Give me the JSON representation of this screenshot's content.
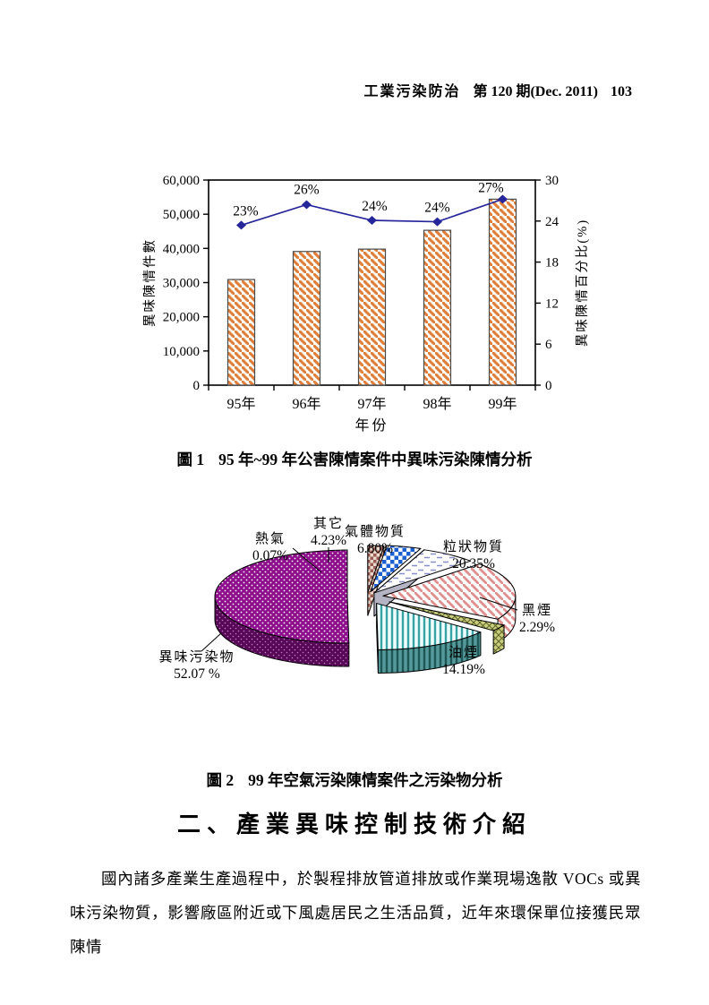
{
  "header": {
    "journal": "工業污染防治",
    "issue": "第 120 期(Dec. 2011)",
    "page_number": "103"
  },
  "figure1": {
    "caption_label": "圖 1",
    "caption_text": "95 年~99 年公害陳情案件中異味污染陳情分析"
  },
  "figure2": {
    "caption_label": "圖 2",
    "caption_text": "99 年空氣污染陳情案件之污染物分析"
  },
  "section_heading": "二、產業異味控制技術介紹",
  "paragraph": "國內諸多產業生產過程中，於製程排放管道排放或作業現場逸散 VOCs 或異味污染物質，影響廠區附近或下風處居民之生活品質，近年來環保單位接獲民眾陳情",
  "chart_data": [
    {
      "type": "bar",
      "title": "",
      "categories": [
        "95年",
        "96年",
        "97年",
        "98年",
        "99年"
      ],
      "series": [
        {
          "name": "異味陳情件數",
          "type": "bar",
          "axis": "left",
          "values": [
            30900,
            39100,
            39800,
            45300,
            54400
          ]
        },
        {
          "name": "異味陳情百分比",
          "type": "line",
          "axis": "right",
          "values": [
            23.4,
            26.4,
            24.1,
            23.9,
            27.2
          ],
          "point_labels": [
            "23%",
            "26%",
            "24%",
            "24%",
            "27%"
          ]
        }
      ],
      "xlabel": "年份",
      "ylabel_left": "異味陳情件數",
      "ylabel_right": "異味陳情百分比(%)",
      "ylim_left": [
        0,
        60000
      ],
      "ylim_right": [
        0,
        30
      ],
      "yticks_left": [
        "0",
        "10,000",
        "20,000",
        "30,000",
        "40,000",
        "50,000",
        "60,000"
      ],
      "yticks_right": [
        "0",
        "6",
        "12",
        "18",
        "24",
        "30"
      ],
      "grid": "off",
      "legend": "none",
      "colors": {
        "bar_hatch": "#E07F3C",
        "line": "#26269B",
        "frame": "#000000"
      }
    },
    {
      "type": "pie",
      "style": "3d-exploded",
      "labels": [
        "異味污染物",
        "熱氣",
        "其它",
        "氣體物質",
        "粒狀物質",
        "黑煙",
        "油煙"
      ],
      "values": [
        52.07,
        0.07,
        4.23,
        6.8,
        20.35,
        2.29,
        14.19
      ],
      "value_labels": [
        "52.07 %",
        "0.07%",
        "4.23%",
        "6.80%",
        "20.35%",
        "2.29%",
        "14.19%"
      ],
      "slice_colors": {
        "異味污染物": "#8E0F8E",
        "熱氣": "#9A5B52",
        "其它": "#1C5FD0",
        "氣體物質": "#8890CC",
        "粒狀物質": "#E08F8F",
        "黑煙": "#CBCE7E",
        "油煙": "#39A3A3"
      }
    }
  ]
}
